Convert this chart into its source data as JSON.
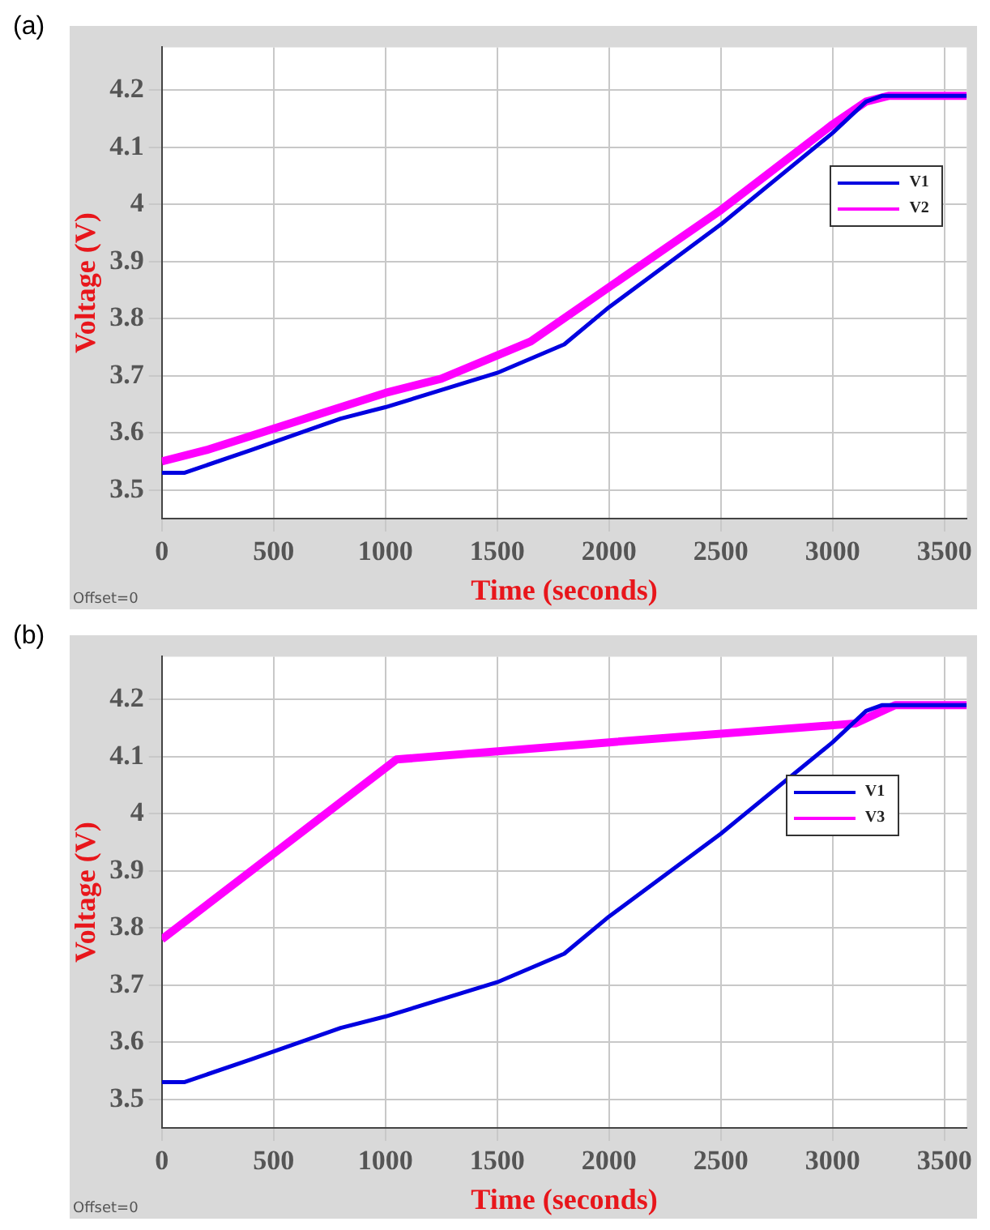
{
  "chart_data": [
    {
      "type": "line",
      "title": "(a)",
      "xlabel": "Time (seconds)",
      "ylabel": "Voltage (V)",
      "annotations": [
        "Offset=0"
      ],
      "xlim": [
        0,
        3600
      ],
      "ylim": [
        3.45,
        4.275
      ],
      "xticks": [
        0,
        500,
        1000,
        1500,
        2000,
        2500,
        3000,
        3500
      ],
      "yticks": [
        3.5,
        3.6,
        3.7,
        3.8,
        3.9,
        4,
        4.1,
        4.2
      ],
      "grid": true,
      "legend": "top right",
      "marker": "none",
      "line_style": "solid",
      "series": [
        {
          "name": "V1",
          "color": "#0000e0",
          "x": [
            0,
            100,
            400,
            800,
            1000,
            1500,
            1800,
            2000,
            2500,
            3000,
            3150,
            3220,
            3600
          ],
          "values": [
            3.53,
            3.53,
            3.57,
            3.625,
            3.645,
            3.705,
            3.755,
            3.82,
            3.965,
            4.125,
            4.18,
            4.19,
            4.19
          ]
        },
        {
          "name": "V2",
          "color": "#ff00ff",
          "x": [
            0,
            200,
            600,
            1000,
            1250,
            1650,
            2000,
            2500,
            3000,
            3150,
            3250,
            3600
          ],
          "values": [
            3.55,
            3.57,
            3.62,
            3.67,
            3.695,
            3.76,
            3.855,
            3.99,
            4.14,
            4.18,
            4.19,
            4.19
          ]
        }
      ]
    },
    {
      "type": "line",
      "title": "(b)",
      "xlabel": "Time (seconds)",
      "ylabel": "Voltage (V)",
      "annotations": [
        "Offset=0"
      ],
      "xlim": [
        0,
        3600
      ],
      "ylim": [
        3.45,
        4.275
      ],
      "xticks": [
        0,
        500,
        1000,
        1500,
        2000,
        2500,
        3000,
        3500
      ],
      "yticks": [
        3.5,
        3.6,
        3.7,
        3.8,
        3.9,
        4,
        4.1,
        4.2
      ],
      "grid": true,
      "legend": "top right",
      "marker": "none",
      "line_style": "solid",
      "series": [
        {
          "name": "V1",
          "color": "#0000e0",
          "x": [
            0,
            100,
            400,
            800,
            1000,
            1500,
            1800,
            2000,
            2500,
            3000,
            3150,
            3220,
            3600
          ],
          "values": [
            3.53,
            3.53,
            3.57,
            3.625,
            3.645,
            3.705,
            3.755,
            3.82,
            3.965,
            4.125,
            4.18,
            4.19,
            4.19
          ]
        },
        {
          "name": "V3",
          "color": "#ff00ff",
          "x": [
            0,
            500,
            1050,
            2000,
            3100,
            3280,
            3600
          ],
          "values": [
            3.78,
            3.93,
            4.095,
            4.125,
            4.158,
            4.19,
            4.19
          ]
        }
      ]
    }
  ]
}
